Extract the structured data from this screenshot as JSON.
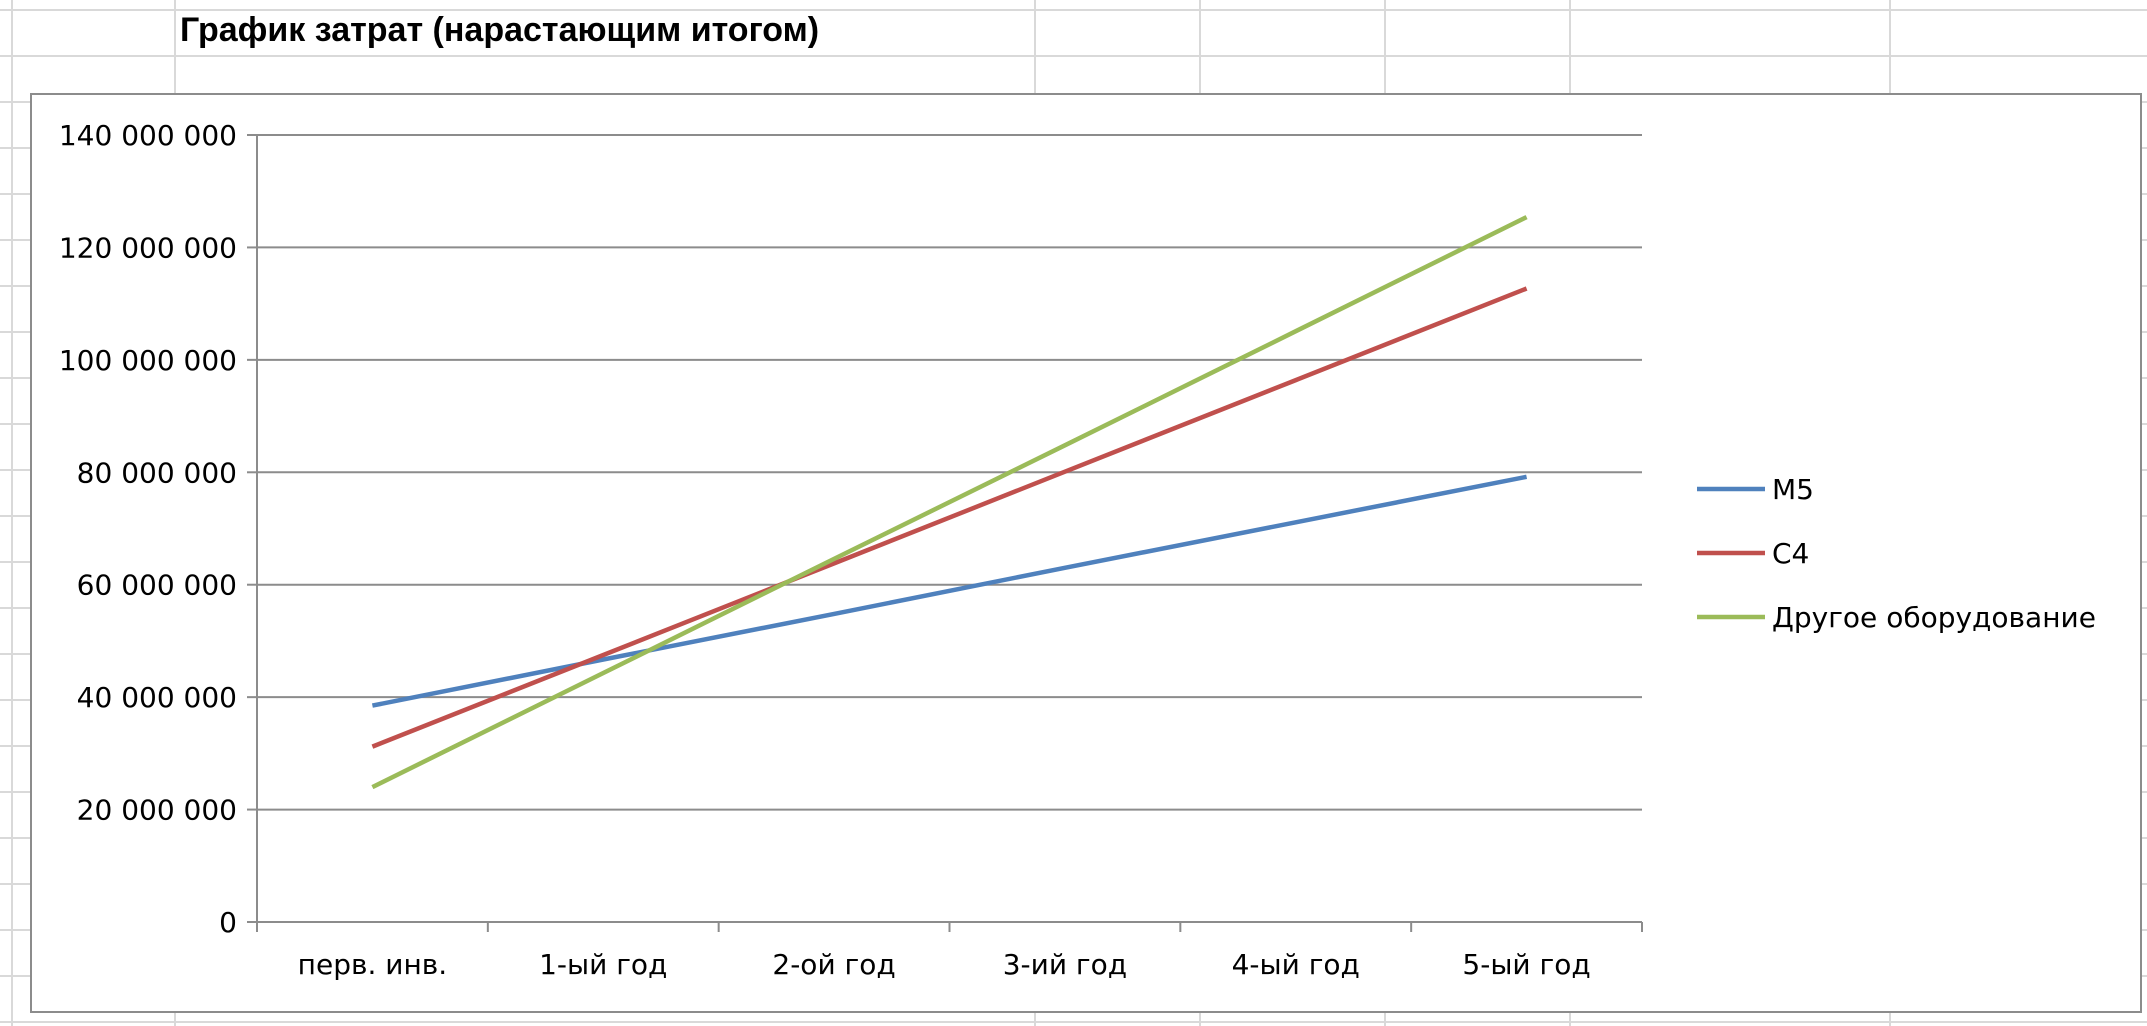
{
  "sheet": {
    "title": "График затрат (нарастающим итогом)",
    "gridline_color": "#d9d9d9"
  },
  "chart_data": {
    "type": "line",
    "title": "",
    "xlabel": "",
    "ylabel": "",
    "categories": [
      "перв. инв.",
      "1-ый год",
      "2-ой год",
      "3-ий год",
      "4-ый год",
      "5-ый год"
    ],
    "y_ticks": [
      0,
      20000000,
      40000000,
      60000000,
      80000000,
      100000000,
      120000000,
      140000000
    ],
    "y_tick_labels": [
      "0",
      "20 000 000",
      "40 000 000",
      "60 000 000",
      "80 000 000",
      "100 000 000",
      "120 000 000",
      "140 000 000"
    ],
    "ylim": [
      0,
      140000000
    ],
    "grid": "horizontal",
    "legend_position": "right",
    "series": [
      {
        "name": "М5",
        "color": "#4f81bd",
        "values": [
          38500000,
          46700000,
          54800000,
          63000000,
          71100000,
          79200000
        ]
      },
      {
        "name": "С4",
        "color": "#c0504d",
        "values": [
          31200000,
          47500000,
          63800000,
          80100000,
          96400000,
          112700000
        ]
      },
      {
        "name": "Другое оборудование",
        "color": "#9bbb59",
        "values": [
          24000000,
          44300000,
          64600000,
          84800000,
          105100000,
          125400000
        ]
      }
    ]
  }
}
